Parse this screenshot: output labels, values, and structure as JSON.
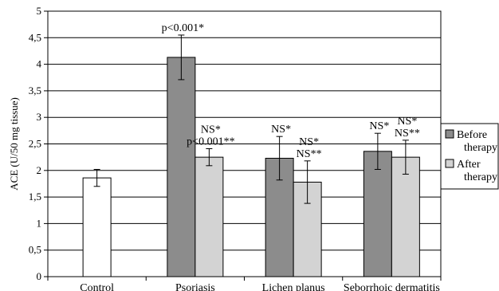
{
  "chart_data": {
    "type": "bar",
    "title": "",
    "xlabel": "",
    "ylabel": "ACE (U/50 mg tissue)",
    "ylim": [
      0,
      5
    ],
    "yticks": [
      "0",
      "0,5",
      "1",
      "1,5",
      "2",
      "2,5",
      "3",
      "3,5",
      "4",
      "4,5",
      "5"
    ],
    "grid": "horizontal",
    "legend_position": "right",
    "categories": [
      "Control",
      "Psoriasis",
      "Lichen planus",
      "Seborrhoic dermatitis"
    ],
    "series": [
      {
        "name": "Before\ntherapy",
        "legend_lines": [
          "Before",
          "therapy"
        ],
        "color": "#8c8c8c",
        "values": [
          null,
          4.13,
          2.23,
          2.36
        ],
        "error": [
          null,
          0.42,
          0.41,
          0.34
        ]
      },
      {
        "name": "After\ntherapy",
        "legend_lines": [
          "After",
          "therapy"
        ],
        "color": "#d3d3d3",
        "values": [
          null,
          2.25,
          1.78,
          2.25
        ],
        "error": [
          null,
          0.16,
          0.4,
          0.32
        ]
      }
    ],
    "control": {
      "value": 1.86,
      "error": 0.16,
      "color": "#ffffff"
    },
    "annotations": [
      {
        "category": 1,
        "series": 0,
        "lines": [
          "p<0.001*"
        ]
      },
      {
        "category": 1,
        "series": 1,
        "lines": [
          "NS*",
          "p<0.001**"
        ]
      },
      {
        "category": 2,
        "series": 0,
        "lines": [
          "NS*"
        ]
      },
      {
        "category": 2,
        "series": 1,
        "lines": [
          "NS*",
          "NS**"
        ]
      },
      {
        "category": 3,
        "series": 0,
        "lines": [
          "NS*"
        ]
      },
      {
        "category": 3,
        "series": 1,
        "lines": [
          "NS*",
          "NS**"
        ]
      }
    ]
  }
}
